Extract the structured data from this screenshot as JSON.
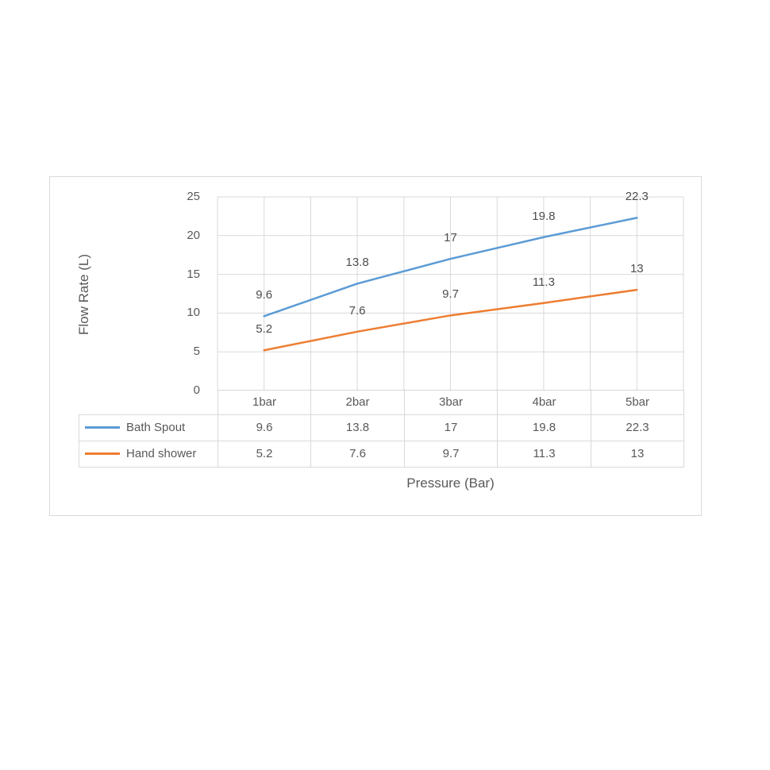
{
  "chart_data": {
    "type": "line",
    "title": "",
    "categories": [
      "1bar",
      "2bar",
      "3bar",
      "4bar",
      "5bar"
    ],
    "series": [
      {
        "name": "Bath Spout",
        "color": "#5B9BD5",
        "values": [
          9.6,
          13.8,
          17,
          19.8,
          22.3
        ]
      },
      {
        "name": "Hand shower",
        "color": "#ED7D31",
        "values": [
          5.2,
          7.6,
          9.7,
          11.3,
          13
        ]
      }
    ],
    "xlabel": "Pressure (Bar)",
    "ylabel": "Flow Rate (L)",
    "ylim": [
      0,
      25
    ],
    "yticks": [
      0,
      5,
      10,
      15,
      20,
      25
    ],
    "grid": true,
    "data_labels": true,
    "legend_position": "table-left",
    "colors": {
      "grid": "#D9D9D9",
      "axis": "#BFBFBF",
      "text": "#595959",
      "frame_border": "#D9D9D9",
      "table_border": "#D9D9D9"
    }
  }
}
